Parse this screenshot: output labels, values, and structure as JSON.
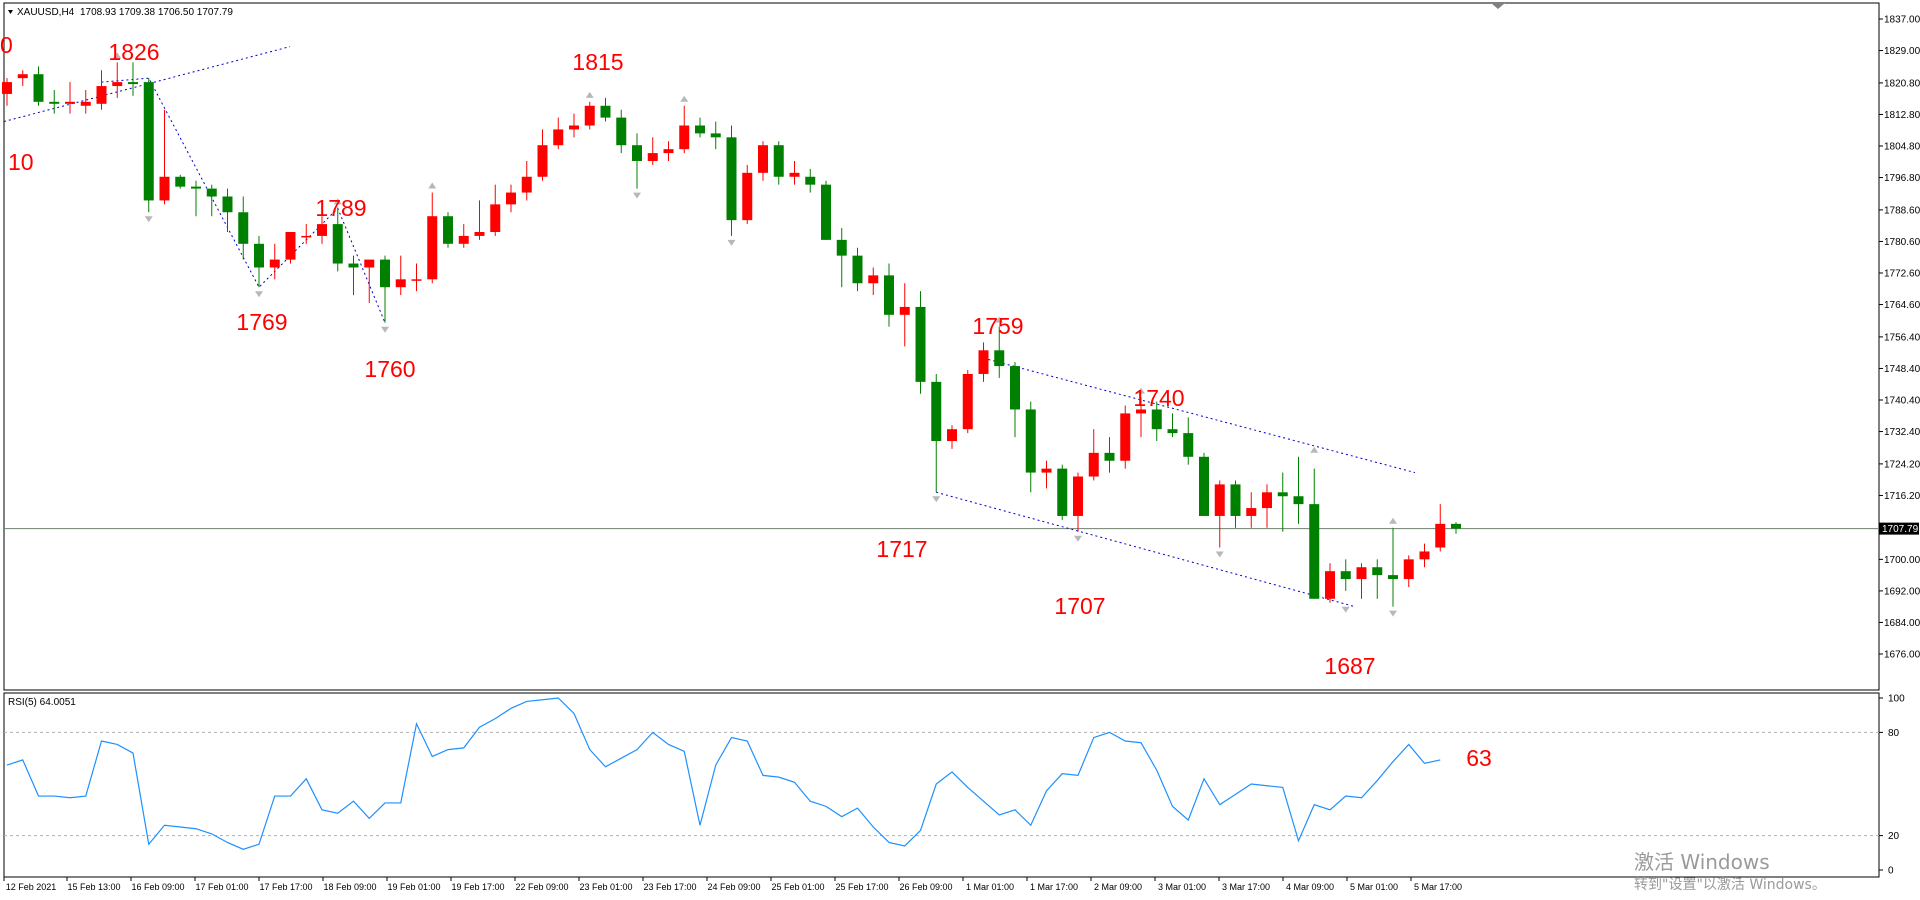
{
  "header": {
    "symbol": "XAUUSD,H4",
    "ohlc": "1708.93 1709.38 1706.50 1707.79"
  },
  "price_axis": {
    "ticks": [
      "1837.00",
      "1829.00",
      "1820.80",
      "1812.80",
      "1804.80",
      "1796.80",
      "1788.60",
      "1780.60",
      "1772.60",
      "1764.60",
      "1756.40",
      "1748.40",
      "1740.40",
      "1732.40",
      "1724.20",
      "1716.20",
      "1700.00",
      "1692.00",
      "1684.00",
      "1676.00"
    ],
    "current_label": "1707.79"
  },
  "time_axis": [
    "12 Feb 2021",
    "15 Feb 13:00",
    "16 Feb 09:00",
    "17 Feb 01:00",
    "17 Feb 17:00",
    "18 Feb 09:00",
    "19 Feb 01:00",
    "19 Feb 17:00",
    "22 Feb 09:00",
    "23 Feb 01:00",
    "23 Feb 17:00",
    "24 Feb 09:00",
    "25 Feb 01:00",
    "25 Feb 17:00",
    "26 Feb 09:00",
    "1 Mar 01:00",
    "1 Mar 17:00",
    "2 Mar 09:00",
    "3 Mar 01:00",
    "3 Mar 17:00",
    "4 Mar 09:00",
    "5 Mar 01:00",
    "5 Mar 17:00"
  ],
  "annotations": [
    "0",
    "1826",
    "10",
    "1815",
    "1789",
    "1769",
    "1760",
    "1759",
    "1740",
    "1717",
    "1707",
    "1687",
    "63"
  ],
  "indicator": {
    "label": "RSI(5) 64.0051",
    "ticks": [
      "100",
      "80",
      "20",
      "0"
    ]
  },
  "watermark": {
    "line1": "激活 Windows",
    "line2": "转到\"设置\"以激活 Windows。"
  },
  "colors": {
    "bull": "#ff0000",
    "bear": "#008000",
    "rsi": "#1e90ff",
    "trend": "#0000cd",
    "annotation": "#ff0000"
  },
  "chart_data": {
    "type": "candlestick",
    "symbol": "XAUUSD",
    "timeframe": "H4",
    "ylim": [
      1672,
      1842
    ],
    "candles": [
      {
        "o": 1818.0,
        "h": 1822.0,
        "l": 1815.0,
        "c": 1821.0
      },
      {
        "o": 1822.0,
        "h": 1824.0,
        "l": 1820.0,
        "c": 1823.0
      },
      {
        "o": 1823.0,
        "h": 1825.0,
        "l": 1815.0,
        "c": 1816.0
      },
      {
        "o": 1816.0,
        "h": 1819.0,
        "l": 1813.0,
        "c": 1815.5
      },
      {
        "o": 1815.5,
        "h": 1821.0,
        "l": 1813.0,
        "c": 1816.0
      },
      {
        "o": 1815.0,
        "h": 1819.0,
        "l": 1813.0,
        "c": 1816.0
      },
      {
        "o": 1815.5,
        "h": 1824.0,
        "l": 1814.0,
        "c": 1820.0
      },
      {
        "o": 1820.0,
        "h": 1826.0,
        "l": 1817.0,
        "c": 1821.0
      },
      {
        "o": 1821.0,
        "h": 1826.0,
        "l": 1817.5,
        "c": 1820.5
      },
      {
        "o": 1821.0,
        "h": 1822.0,
        "l": 1788.0,
        "c": 1791.0
      },
      {
        "o": 1791.0,
        "h": 1814.0,
        "l": 1790.0,
        "c": 1797.0
      },
      {
        "o": 1797.0,
        "h": 1797.5,
        "l": 1794.0,
        "c": 1794.5
      },
      {
        "o": 1794.5,
        "h": 1796.0,
        "l": 1787.0,
        "c": 1794.0
      },
      {
        "o": 1794.0,
        "h": 1795.0,
        "l": 1787.0,
        "c": 1792.0
      },
      {
        "o": 1792.0,
        "h": 1794.0,
        "l": 1783.0,
        "c": 1788.0
      },
      {
        "o": 1788.0,
        "h": 1792.0,
        "l": 1776.0,
        "c": 1780.0
      },
      {
        "o": 1780.0,
        "h": 1782.0,
        "l": 1769.0,
        "c": 1774.0
      },
      {
        "o": 1774.0,
        "h": 1780.0,
        "l": 1771.0,
        "c": 1776.0
      },
      {
        "o": 1776.0,
        "h": 1783.0,
        "l": 1775.0,
        "c": 1783.0
      },
      {
        "o": 1782.0,
        "h": 1785.0,
        "l": 1780.0,
        "c": 1782.0
      },
      {
        "o": 1782.0,
        "h": 1787.0,
        "l": 1780.0,
        "c": 1785.0
      },
      {
        "o": 1785.0,
        "h": 1789.0,
        "l": 1773.0,
        "c": 1775.0
      },
      {
        "o": 1775.0,
        "h": 1777.0,
        "l": 1767.0,
        "c": 1774.0
      },
      {
        "o": 1774.0,
        "h": 1775.0,
        "l": 1765.0,
        "c": 1776.0
      },
      {
        "o": 1776.0,
        "h": 1777.0,
        "l": 1760.0,
        "c": 1769.0
      },
      {
        "o": 1769.0,
        "h": 1777.0,
        "l": 1767.0,
        "c": 1771.0
      },
      {
        "o": 1771.0,
        "h": 1775.0,
        "l": 1768.0,
        "c": 1771.0
      },
      {
        "o": 1771.0,
        "h": 1793.0,
        "l": 1770.0,
        "c": 1787.0
      },
      {
        "o": 1787.0,
        "h": 1788.0,
        "l": 1779.0,
        "c": 1780.0
      },
      {
        "o": 1780.0,
        "h": 1785.0,
        "l": 1779.0,
        "c": 1782.0
      },
      {
        "o": 1782.0,
        "h": 1791.0,
        "l": 1781.0,
        "c": 1783.0
      },
      {
        "o": 1783.0,
        "h": 1795.0,
        "l": 1782.0,
        "c": 1790.0
      },
      {
        "o": 1790.0,
        "h": 1795.0,
        "l": 1788.0,
        "c": 1793.0
      },
      {
        "o": 1793.0,
        "h": 1801.0,
        "l": 1791.0,
        "c": 1797.0
      },
      {
        "o": 1797.0,
        "h": 1809.0,
        "l": 1796.0,
        "c": 1805.0
      },
      {
        "o": 1805.0,
        "h": 1812.0,
        "l": 1804.0,
        "c": 1809.0
      },
      {
        "o": 1809.0,
        "h": 1813.0,
        "l": 1807.0,
        "c": 1810.0
      },
      {
        "o": 1810.0,
        "h": 1816.0,
        "l": 1809.0,
        "c": 1815.0
      },
      {
        "o": 1815.0,
        "h": 1817.0,
        "l": 1811.0,
        "c": 1812.0
      },
      {
        "o": 1812.0,
        "h": 1814.0,
        "l": 1803.0,
        "c": 1805.0
      },
      {
        "o": 1805.0,
        "h": 1808.0,
        "l": 1794.0,
        "c": 1801.0
      },
      {
        "o": 1801.0,
        "h": 1807.0,
        "l": 1800.0,
        "c": 1803.0
      },
      {
        "o": 1803.0,
        "h": 1806.0,
        "l": 1801.0,
        "c": 1804.0
      },
      {
        "o": 1804.0,
        "h": 1815.0,
        "l": 1803.0,
        "c": 1810.0
      },
      {
        "o": 1810.0,
        "h": 1812.0,
        "l": 1807.0,
        "c": 1808.0
      },
      {
        "o": 1808.0,
        "h": 1811.0,
        "l": 1804.0,
        "c": 1807.0
      },
      {
        "o": 1807.0,
        "h": 1810.0,
        "l": 1782.0,
        "c": 1786.0
      },
      {
        "o": 1786.0,
        "h": 1800.0,
        "l": 1785.0,
        "c": 1798.0
      },
      {
        "o": 1798.0,
        "h": 1806.0,
        "l": 1796.0,
        "c": 1805.0
      },
      {
        "o": 1805.0,
        "h": 1806.0,
        "l": 1795.0,
        "c": 1797.0
      },
      {
        "o": 1797.0,
        "h": 1801.0,
        "l": 1795.0,
        "c": 1798.0
      },
      {
        "o": 1797.0,
        "h": 1799.0,
        "l": 1793.0,
        "c": 1795.0
      },
      {
        "o": 1795.0,
        "h": 1796.0,
        "l": 1781.0,
        "c": 1781.0
      },
      {
        "o": 1781.0,
        "h": 1784.0,
        "l": 1769.0,
        "c": 1777.0
      },
      {
        "o": 1777.0,
        "h": 1779.0,
        "l": 1768.0,
        "c": 1770.0
      },
      {
        "o": 1770.0,
        "h": 1774.0,
        "l": 1767.0,
        "c": 1772.0
      },
      {
        "o": 1772.0,
        "h": 1775.0,
        "l": 1759.0,
        "c": 1762.0
      },
      {
        "o": 1762.0,
        "h": 1770.0,
        "l": 1754.0,
        "c": 1764.0
      },
      {
        "o": 1764.0,
        "h": 1768.0,
        "l": 1742.0,
        "c": 1745.0
      },
      {
        "o": 1745.0,
        "h": 1747.0,
        "l": 1717.0,
        "c": 1730.0
      },
      {
        "o": 1730.0,
        "h": 1734.0,
        "l": 1728.0,
        "c": 1733.0
      },
      {
        "o": 1733.0,
        "h": 1748.0,
        "l": 1732.0,
        "c": 1747.0
      },
      {
        "o": 1747.0,
        "h": 1755.0,
        "l": 1745.0,
        "c": 1753.0
      },
      {
        "o": 1753.0,
        "h": 1759.0,
        "l": 1746.0,
        "c": 1749.0
      },
      {
        "o": 1749.0,
        "h": 1750.0,
        "l": 1731.0,
        "c": 1738.0
      },
      {
        "o": 1738.0,
        "h": 1740.0,
        "l": 1717.0,
        "c": 1722.0
      },
      {
        "o": 1722.0,
        "h": 1725.0,
        "l": 1718.0,
        "c": 1723.0
      },
      {
        "o": 1723.0,
        "h": 1724.0,
        "l": 1710.0,
        "c": 1711.0
      },
      {
        "o": 1711.0,
        "h": 1722.0,
        "l": 1707.0,
        "c": 1721.0
      },
      {
        "o": 1721.0,
        "h": 1733.0,
        "l": 1720.0,
        "c": 1727.0
      },
      {
        "o": 1727.0,
        "h": 1731.0,
        "l": 1722.0,
        "c": 1725.0
      },
      {
        "o": 1725.0,
        "h": 1739.0,
        "l": 1723.0,
        "c": 1737.0
      },
      {
        "o": 1737.0,
        "h": 1741.0,
        "l": 1731.0,
        "c": 1738.0
      },
      {
        "o": 1738.0,
        "h": 1740.0,
        "l": 1730.0,
        "c": 1733.0
      },
      {
        "o": 1733.0,
        "h": 1737.0,
        "l": 1731.0,
        "c": 1732.0
      },
      {
        "o": 1732.0,
        "h": 1736.0,
        "l": 1724.0,
        "c": 1726.0
      },
      {
        "o": 1726.0,
        "h": 1727.0,
        "l": 1711.0,
        "c": 1711.0
      },
      {
        "o": 1711.0,
        "h": 1720.0,
        "l": 1703.0,
        "c": 1719.0
      },
      {
        "o": 1719.0,
        "h": 1720.0,
        "l": 1708.0,
        "c": 1711.0
      },
      {
        "o": 1711.0,
        "h": 1717.0,
        "l": 1708.0,
        "c": 1713.0
      },
      {
        "o": 1713.0,
        "h": 1719.0,
        "l": 1708.0,
        "c": 1717.0
      },
      {
        "o": 1717.0,
        "h": 1722.0,
        "l": 1707.0,
        "c": 1716.0
      },
      {
        "o": 1716.0,
        "h": 1726.0,
        "l": 1709.0,
        "c": 1714.0
      },
      {
        "o": 1714.0,
        "h": 1723.0,
        "l": 1690.0,
        "c": 1690.0
      },
      {
        "o": 1690.0,
        "h": 1699.0,
        "l": 1689.0,
        "c": 1697.0
      },
      {
        "o": 1697.0,
        "h": 1700.0,
        "l": 1692.0,
        "c": 1695.0
      },
      {
        "o": 1695.0,
        "h": 1699.0,
        "l": 1690.0,
        "c": 1698.0
      },
      {
        "o": 1698.0,
        "h": 1700.0,
        "l": 1690.0,
        "c": 1696.0
      },
      {
        "o": 1696.0,
        "h": 1708.0,
        "l": 1688.0,
        "c": 1695.0
      },
      {
        "o": 1695.0,
        "h": 1701.0,
        "l": 1693.0,
        "c": 1700.0
      },
      {
        "o": 1700.0,
        "h": 1704.0,
        "l": 1698.0,
        "c": 1702.0
      },
      {
        "o": 1703.0,
        "h": 1714.0,
        "l": 1702.0,
        "c": 1709.0
      },
      {
        "o": 1709.0,
        "h": 1709.4,
        "l": 1706.5,
        "c": 1707.8
      }
    ],
    "current_price": 1707.79,
    "rsi": {
      "name": "RSI(5)",
      "last": 64.0051,
      "ylim": [
        0,
        100
      ],
      "levels": [
        20,
        80
      ],
      "values": [
        61,
        64,
        43,
        43,
        42,
        43,
        75,
        73,
        68,
        15,
        26,
        25,
        24,
        21,
        16,
        12,
        15,
        43,
        43,
        53,
        35,
        33,
        40,
        30,
        39,
        39,
        85,
        66,
        70,
        71,
        83,
        88,
        94,
        98,
        99,
        100,
        91,
        70,
        60,
        65,
        70,
        80,
        73,
        69,
        26,
        61,
        77,
        75,
        55,
        54,
        51,
        40,
        37,
        31,
        36,
        25,
        16,
        14,
        23,
        50,
        57,
        48,
        40,
        32,
        35,
        26,
        46,
        56,
        55,
        77,
        80,
        75,
        74,
        58,
        37,
        29,
        53,
        38,
        44,
        50,
        49,
        48,
        17,
        38,
        35,
        43,
        42,
        52,
        63,
        73,
        62,
        64
      ]
    }
  }
}
